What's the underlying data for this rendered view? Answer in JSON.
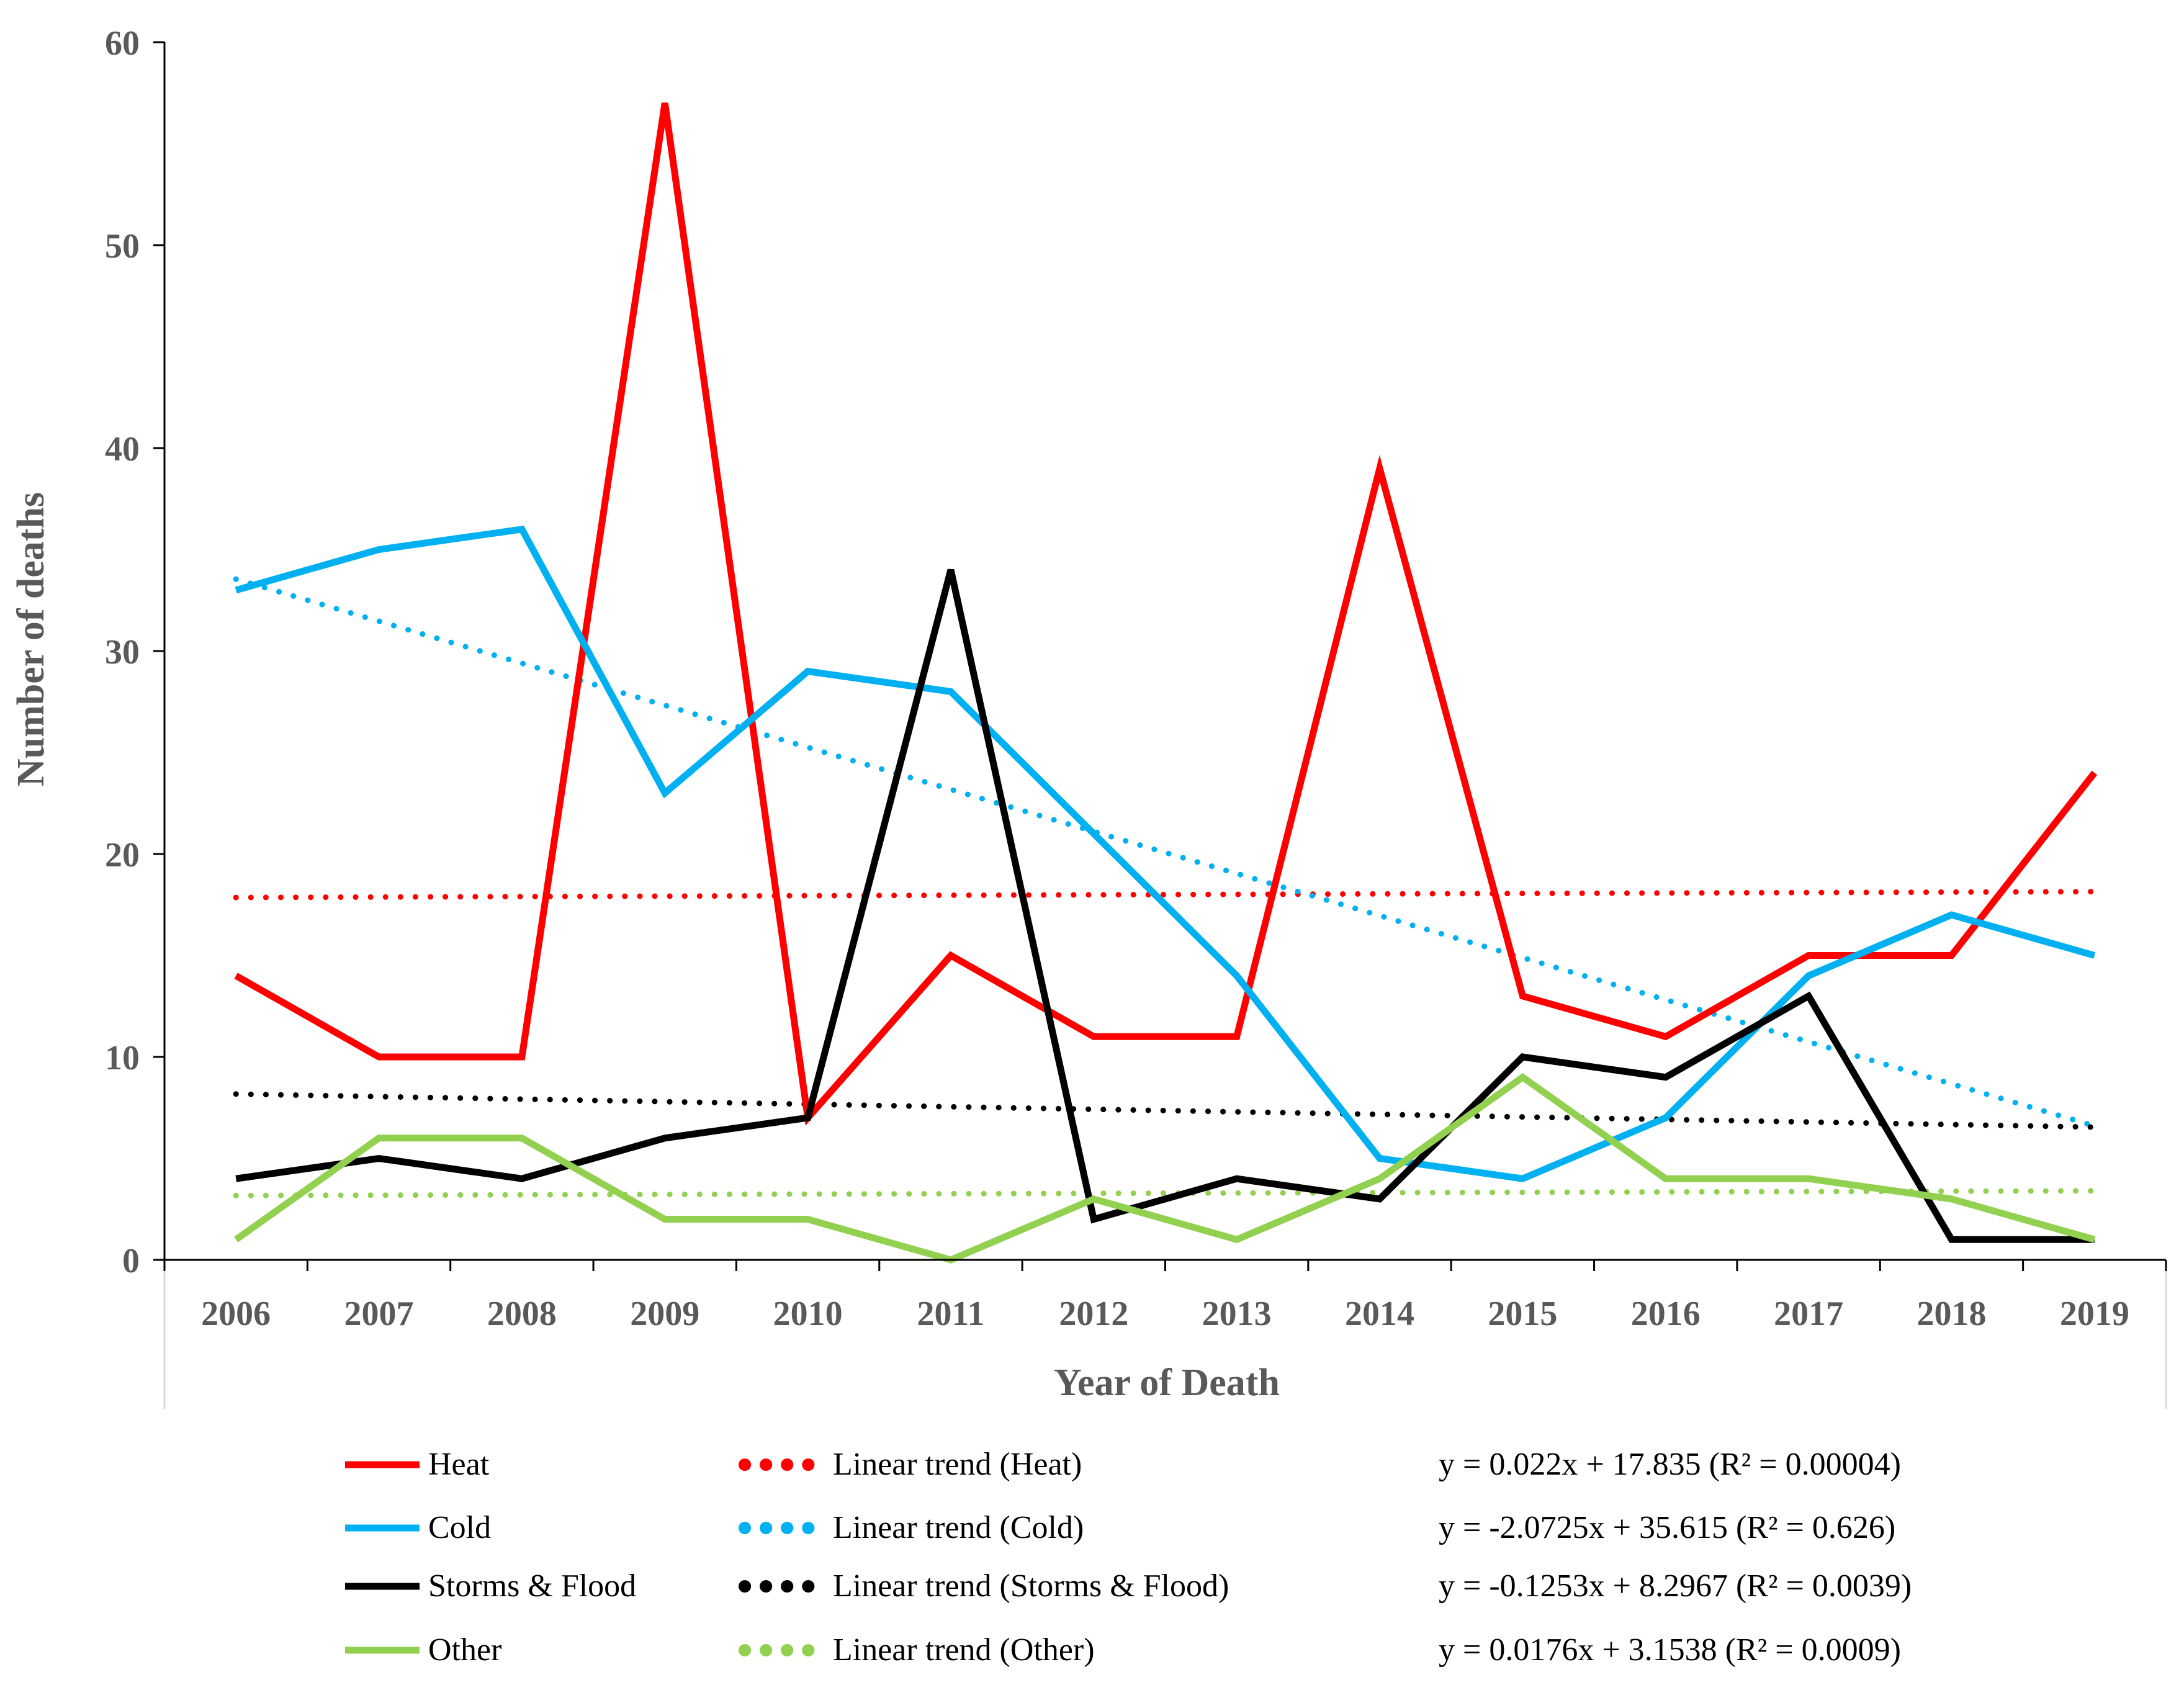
{
  "chart_data": {
    "type": "line",
    "title": "",
    "xlabel": "Year of Death",
    "ylabel": "Number of deaths",
    "ylim": [
      0,
      60
    ],
    "yticks": [
      0,
      10,
      20,
      30,
      40,
      50,
      60
    ],
    "grid": false,
    "legend_position": "bottom",
    "categories": [
      "2006",
      "2007",
      "2008",
      "2009",
      "2010",
      "2011",
      "2012",
      "2013",
      "2014",
      "2015",
      "2016",
      "2017",
      "2018",
      "2019"
    ],
    "series": [
      {
        "name": "Heat",
        "color": "#ff0000",
        "values": [
          14,
          10,
          10,
          57,
          7,
          15,
          11,
          11,
          39,
          13,
          11,
          15,
          15,
          24
        ]
      },
      {
        "name": "Cold",
        "color": "#00b0f0",
        "values": [
          33,
          35,
          36,
          23,
          29,
          28,
          21,
          14,
          5,
          4,
          7,
          14,
          17,
          15
        ]
      },
      {
        "name": "Storms & Flood",
        "color": "#000000",
        "values": [
          4,
          5,
          4,
          6,
          7,
          34,
          2,
          4,
          3,
          10,
          9,
          13,
          1,
          1
        ]
      },
      {
        "name": "Other",
        "color": "#92d050",
        "values": [
          1,
          6,
          6,
          2,
          2,
          0,
          3,
          1,
          4,
          9,
          4,
          4,
          3,
          1
        ]
      }
    ],
    "trendlines": [
      {
        "name": "Linear trend (Heat)",
        "color": "#ff0000",
        "slope": 0.022,
        "intercept": 17.835,
        "equation": "y = 0.022x + 17.835 (R² = 0.00004)"
      },
      {
        "name": "Linear trend (Cold)",
        "color": "#00b0f0",
        "slope": -2.0725,
        "intercept": 35.615,
        "equation": "y = -2.0725x + 35.615 (R² = 0.626)"
      },
      {
        "name": "Linear trend (Storms & Flood)",
        "color": "#000000",
        "slope": -0.1253,
        "intercept": 8.2967,
        "equation": "y = -0.1253x + 8.2967 (R² = 0.0039)"
      },
      {
        "name": "Linear trend (Other)",
        "color": "#92d050",
        "slope": 0.0176,
        "intercept": 3.1538,
        "equation": "y = 0.0176x + 3.1538 (R² = 0.0009)"
      }
    ]
  }
}
